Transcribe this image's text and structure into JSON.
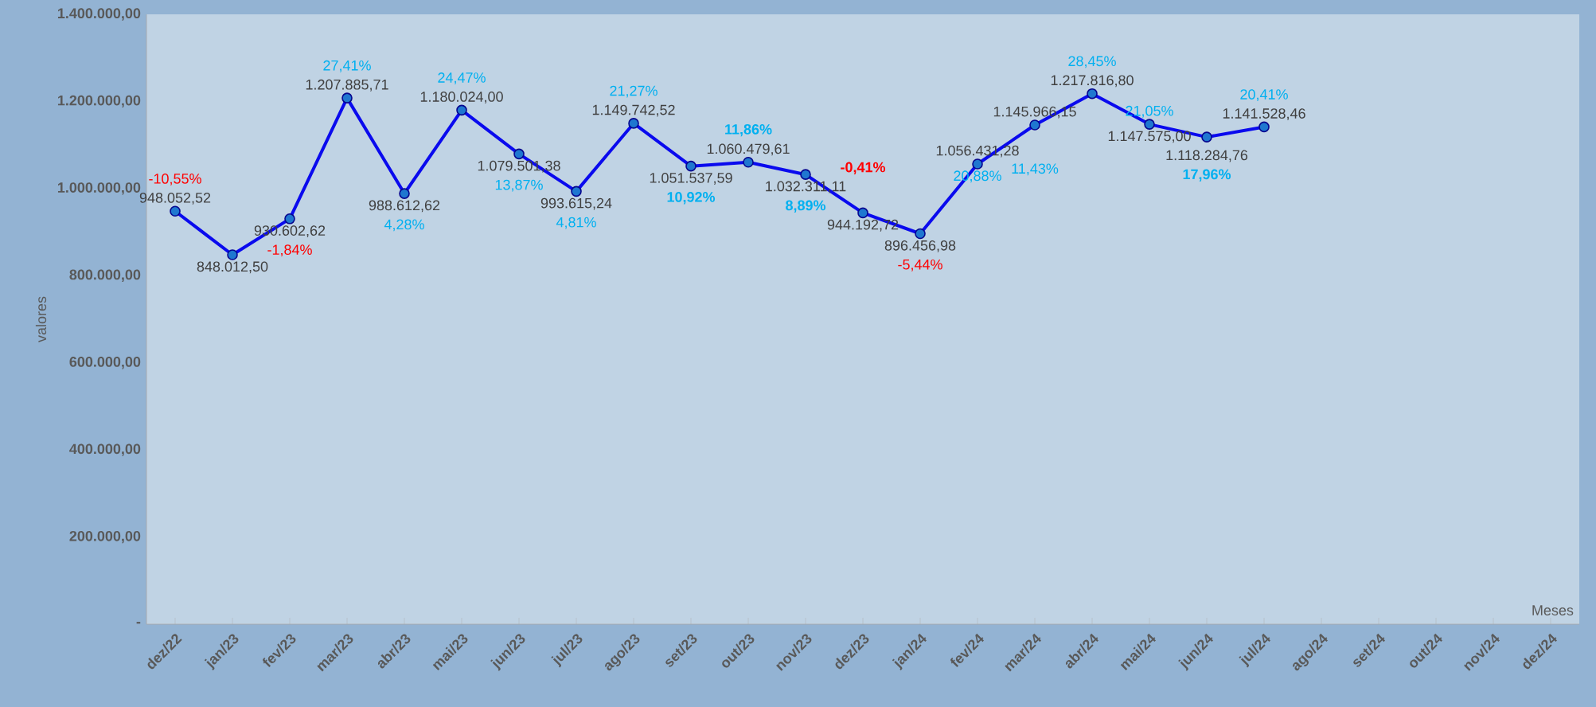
{
  "chart_data": {
    "type": "line",
    "xlabel": "Meses",
    "ylabel": "valores",
    "marker": "circle",
    "line_style": "solid",
    "categories": [
      "dez/22",
      "jan/23",
      "fev/23",
      "mar/23",
      "abr/23",
      "mai/23",
      "jun/23",
      "jul/23",
      "ago/23",
      "set/23",
      "out/23",
      "nov/23",
      "dez/23",
      "jan/24",
      "fev/24",
      "mar/24",
      "abr/24",
      "mai/24",
      "jun/24",
      "jul/24",
      "ago/24",
      "set/24",
      "out/24",
      "nov/24",
      "dez/24"
    ],
    "series": [
      {
        "color": "#0a0aee",
        "values": [
          948052.52,
          848012.5,
          930602.62,
          1207885.71,
          988612.62,
          1180024.0,
          1079501.38,
          993615.24,
          1149742.52,
          1051537.59,
          1060479.61,
          1032311.11,
          944192.72,
          896456.98,
          1056431.28,
          1145966.15,
          1217816.8,
          1147575.0,
          1118284.76,
          1141528.46,
          null,
          null,
          null,
          null,
          null
        ],
        "value_labels": [
          "948.052,52",
          "848.012,50",
          "930.602,62",
          "1.207.885,71",
          "988.612,62",
          "1.180.024,00",
          "1.079.501,38",
          "993.615,24",
          "1.149.742,52",
          "1.051.537,59",
          "1.060.479,61",
          "1.032.311,11",
          "944.192,72",
          "896.456,98",
          "1.056.431,28",
          "1.145.966,15",
          "1.217.816,80",
          "1.147.575,00",
          "1.118.284,76",
          "1.141.528,46",
          null,
          null,
          null,
          null,
          null
        ]
      }
    ],
    "ylim": [
      0,
      1400000
    ],
    "yticks": [
      {
        "value": 0,
        "label": "-"
      },
      {
        "value": 200000,
        "label": "200.000,00"
      },
      {
        "value": 400000,
        "label": "400.000,00"
      },
      {
        "value": 600000,
        "label": "600.000,00"
      },
      {
        "value": 800000,
        "label": "800.000,00"
      },
      {
        "value": 1000000,
        "label": "1.000.000,00"
      },
      {
        "value": 1200000,
        "label": "1.200.000,00"
      },
      {
        "value": 1400000,
        "label": "1.400.000,00"
      }
    ],
    "annotations": [
      {
        "text": "-10,55%",
        "x": "dez/22",
        "y": 948052.52
      },
      {
        "text": "-1,84%",
        "x": "fev/23",
        "y": 930602.62
      },
      {
        "text": "27,41%",
        "x": "mar/23",
        "y": 1207885.71
      },
      {
        "text": "4,28%",
        "x": "abr/23",
        "y": 988612.62
      },
      {
        "text": "24,47%",
        "x": "mai/23",
        "y": 1180024.0
      },
      {
        "text": "13,87%",
        "x": "jun/23",
        "y": 1079501.38
      },
      {
        "text": "4,81%",
        "x": "jul/23",
        "y": 993615.24
      },
      {
        "text": "21,27%",
        "x": "ago/23",
        "y": 1149742.52
      },
      {
        "text": "**10,92%**",
        "x": "set/23",
        "y": 1051537.59
      },
      {
        "text": "**11,86%**",
        "x": "out/23",
        "y": 1060479.61
      },
      {
        "text": "**8,89%**",
        "x": "nov/23",
        "y": 1032311.11
      },
      {
        "text": "**-0,41%**",
        "x": "dez/23",
        "y": 944192.72
      },
      {
        "text": "-5,44%",
        "x": "jan/24",
        "y": 896456.98
      },
      {
        "text": "20,88%",
        "x": "fev/24",
        "y": 1056431.28
      },
      {
        "text": "11,43%",
        "x": "mar/24",
        "y": 1145966.15
      },
      {
        "text": "28,45%",
        "x": "abr/24",
        "y": 1217816.8
      },
      {
        "text": "21,05%",
        "x": "mai/24",
        "y": 1147575.0
      },
      {
        "text": "**17,96%**",
        "x": "jun/24",
        "y": 1118284.76
      },
      {
        "text": "20,41%",
        "x": "jul/24",
        "y": 1141528.46
      }
    ]
  }
}
